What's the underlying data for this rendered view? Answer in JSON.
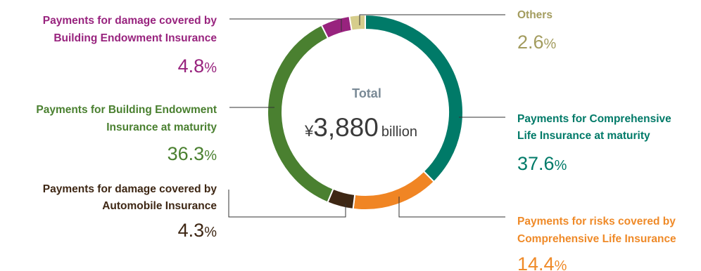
{
  "chart_data": {
    "type": "donut",
    "center": {
      "label": "Total",
      "prefix": "¥",
      "value": "3,880",
      "unit": "billion"
    },
    "series": [
      {
        "key": "comp-maturity",
        "label_lines": [
          "Payments for Comprehensive",
          "Life Insurance at maturity"
        ],
        "value": 37.6,
        "display": "37.6",
        "color": "#007a68"
      },
      {
        "key": "comp-risks",
        "label_lines": [
          "Payments for risks covered by",
          "Comprehensive Life Insurance"
        ],
        "value": 14.4,
        "display": "14.4",
        "color": "#f08524"
      },
      {
        "key": "auto-damage",
        "label_lines": [
          "Payments for damage covered by",
          "Automobile Insurance"
        ],
        "value": 4.3,
        "display": "4.3",
        "color": "#3e2714"
      },
      {
        "key": "building-maturity",
        "label_lines": [
          "Payments for Building Endowment",
          "Insurance at maturity"
        ],
        "value": 36.3,
        "display": "36.3",
        "color": "#4a8030"
      },
      {
        "key": "building-damage",
        "label_lines": [
          "Payments for damage covered by",
          "Building Endowment Insurance"
        ],
        "value": 4.8,
        "display": "4.8",
        "color": "#98237e"
      },
      {
        "key": "others",
        "label_lines": [
          "Others"
        ],
        "value": 2.6,
        "display": "2.6",
        "color": "#d6cd8c"
      }
    ],
    "percent_sign": "%",
    "text_colors": {
      "comp-maturity": "#007a68",
      "comp-risks": "#ef8a28",
      "auto-damage": "#3e2714",
      "building-maturity": "#4a8030",
      "building-damage": "#98237e",
      "others": "#a39c5e",
      "center_label": "#7a8a96",
      "center_value": "#3a3a3a"
    }
  }
}
